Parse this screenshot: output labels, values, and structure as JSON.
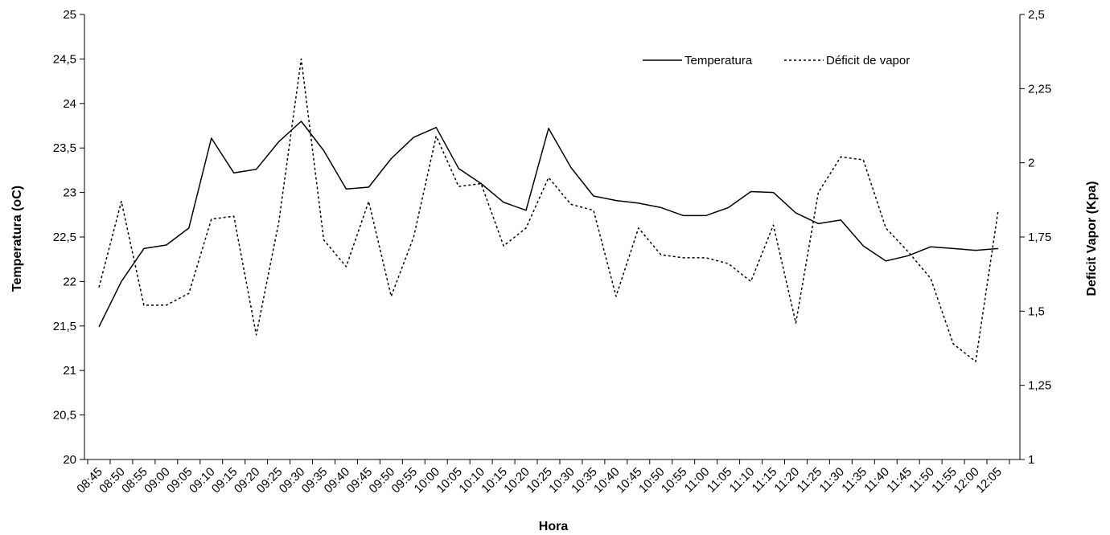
{
  "chart_data": {
    "type": "line",
    "title": "",
    "xlabel": "Hora",
    "ylabel": "Temperatura (oC)",
    "y2label": "Deficit Vapor (Kpa)",
    "ylim": [
      20,
      25
    ],
    "y2lim": [
      1,
      2.5
    ],
    "yticks": [
      "20",
      "20,5",
      "21",
      "21,5",
      "22",
      "22,5",
      "23",
      "23,5",
      "24",
      "24,5",
      "25"
    ],
    "y2ticks": [
      "1",
      "1,25",
      "1,5",
      "1,75",
      "2",
      "2,25",
      "2,5"
    ],
    "categories": [
      "08:45",
      "08:50",
      "08:55",
      "09:00",
      "09:05",
      "09:10",
      "09:15",
      "09:20",
      "09:25",
      "09:30",
      "09:35",
      "09:40",
      "09:45",
      "09:50",
      "09:55",
      "10:00",
      "10:05",
      "10:10",
      "10:15",
      "10:20",
      "10:25",
      "10:30",
      "10:35",
      "10:40",
      "10:45",
      "10:50",
      "10:55",
      "11:00",
      "11:05",
      "11:10",
      "11:15",
      "11:20",
      "11:25",
      "11:30",
      "11:35",
      "11:40",
      "11:45",
      "11:50",
      "11:55",
      "12:00",
      "12:05"
    ],
    "legend_position": "top-right",
    "grid": false,
    "series": [
      {
        "name": "Temperatura",
        "axis": "left",
        "style": "solid",
        "values": [
          21.49,
          22.0,
          22.37,
          22.41,
          22.6,
          23.61,
          23.22,
          23.26,
          23.57,
          23.8,
          23.47,
          23.04,
          23.06,
          23.38,
          23.62,
          23.73,
          23.27,
          23.1,
          22.89,
          22.8,
          23.72,
          23.28,
          22.96,
          22.91,
          22.88,
          22.83,
          22.74,
          22.74,
          22.83,
          23.01,
          23.0,
          22.77,
          22.65,
          22.69,
          22.4,
          22.23,
          22.29,
          22.39,
          22.37,
          22.35,
          22.37
        ]
      },
      {
        "name": "Déficit de vapor",
        "axis": "right",
        "style": "dotted",
        "values": [
          1.58,
          1.87,
          1.52,
          1.52,
          1.56,
          1.81,
          1.82,
          1.42,
          1.8,
          2.35,
          1.74,
          1.65,
          1.87,
          1.55,
          1.75,
          2.09,
          1.92,
          1.93,
          1.72,
          1.78,
          1.95,
          1.86,
          1.84,
          1.55,
          1.78,
          1.69,
          1.68,
          1.68,
          1.66,
          1.6,
          1.79,
          1.46,
          1.9,
          2.02,
          2.01,
          1.78,
          1.7,
          1.61,
          1.39,
          1.33,
          1.84
        ]
      }
    ]
  }
}
